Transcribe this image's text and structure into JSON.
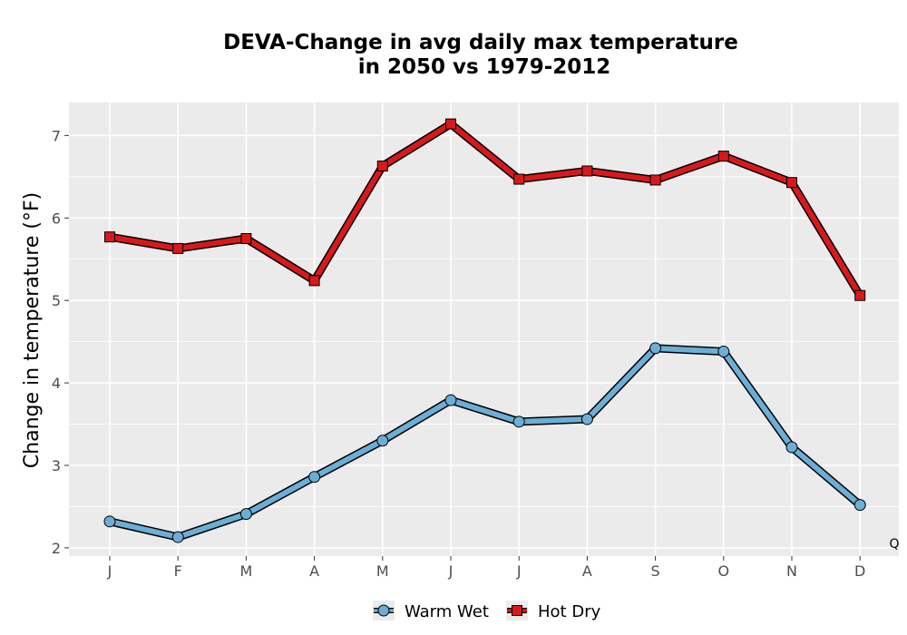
{
  "chart_data": {
    "type": "line",
    "title_line1": "DEVA-Change in avg daily max temperature",
    "title_line2": "in 2050 vs 1979-2012",
    "xlabel": "",
    "ylabel": "Change in temperature (°F)",
    "categories": [
      "J",
      "F",
      "M",
      "A",
      "M",
      "J",
      "J",
      "A",
      "S",
      "O",
      "N",
      "D"
    ],
    "ylim": [
      1.9,
      7.4
    ],
    "yticks": [
      2,
      3,
      4,
      5,
      6,
      7
    ],
    "grid": true,
    "legend_position": "bottom",
    "corner_label": "Q",
    "series": [
      {
        "name": "Warm Wet",
        "color": "#6baed6",
        "marker": "circle",
        "values": [
          2.32,
          2.13,
          2.41,
          2.86,
          3.3,
          3.79,
          3.53,
          3.56,
          4.42,
          4.38,
          3.22,
          2.52
        ]
      },
      {
        "name": "Hot Dry",
        "color": "#d7191c",
        "marker": "square",
        "values": [
          5.77,
          5.63,
          5.75,
          5.24,
          6.63,
          7.14,
          6.47,
          6.57,
          6.46,
          6.75,
          6.43,
          5.06
        ]
      }
    ]
  }
}
